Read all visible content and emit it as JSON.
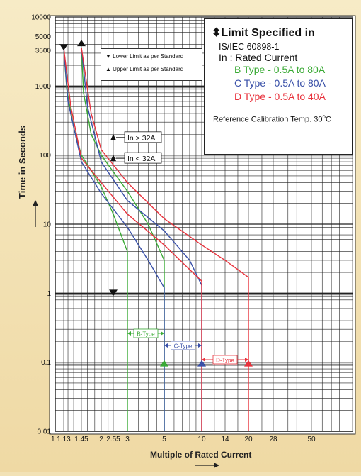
{
  "chart_data": {
    "type": "line",
    "xlabel": "Multiple of Rated Current",
    "ylabel": "Time in Seconds",
    "x_ticks": [
      "1",
      "1.13",
      "1.45",
      "2",
      "2.55",
      "3",
      "5",
      "10",
      "14",
      "20",
      "28",
      "50"
    ],
    "x_tick_values": [
      1,
      1.13,
      1.45,
      2,
      2.55,
      3,
      5,
      10,
      14,
      20,
      28,
      50
    ],
    "y_ticks": [
      "0.01",
      "0.1",
      "1",
      "10",
      "100",
      "1000",
      "3600",
      "5000",
      "10000"
    ],
    "y_tick_values": [
      0.01,
      0.1,
      1,
      10,
      100,
      1000,
      3600,
      5000,
      10000
    ],
    "ylim": [
      0.01,
      10000
    ],
    "y_scale": "log",
    "grid": true,
    "series": [
      {
        "name": "B Type - 0.5A to 80A",
        "color": "#3aaa35",
        "lower": [
          [
            1.13,
            3600
          ],
          [
            1.18,
            900
          ],
          [
            1.3,
            250
          ],
          [
            1.45,
            100
          ],
          [
            2,
            35
          ],
          [
            2.55,
            14
          ],
          [
            3,
            4
          ],
          [
            3,
            0.01
          ]
        ],
        "upper": [
          [
            1.45,
            3600
          ],
          [
            1.5,
            800
          ],
          [
            1.7,
            200
          ],
          [
            2,
            100
          ],
          [
            3,
            30
          ],
          [
            4,
            10
          ],
          [
            5,
            3
          ],
          [
            5,
            0.01
          ]
        ]
      },
      {
        "name": "C Type - 0.5A to 80A",
        "color": "#3950a8",
        "lower": [
          [
            1.13,
            3600
          ],
          [
            1.2,
            600
          ],
          [
            1.45,
            80
          ],
          [
            2,
            28
          ],
          [
            3,
            9
          ],
          [
            4,
            3
          ],
          [
            5,
            1.2
          ],
          [
            5,
            0.01
          ]
        ],
        "upper": [
          [
            1.45,
            3600
          ],
          [
            1.6,
            500
          ],
          [
            2,
            80
          ],
          [
            3,
            22
          ],
          [
            5,
            8
          ],
          [
            8,
            3
          ],
          [
            10,
            1.3
          ],
          [
            10,
            0.01
          ]
        ]
      },
      {
        "name": "D Type - 0.5A to 40A",
        "color": "#e8323c",
        "lower": [
          [
            1.13,
            3600
          ],
          [
            1.25,
            500
          ],
          [
            1.45,
            90
          ],
          [
            2,
            40
          ],
          [
            3,
            14
          ],
          [
            5,
            5
          ],
          [
            8,
            2.2
          ],
          [
            10,
            1.5
          ],
          [
            10,
            0.01
          ]
        ],
        "upper": [
          [
            1.45,
            3600
          ],
          [
            1.7,
            400
          ],
          [
            2,
            120
          ],
          [
            3,
            40
          ],
          [
            5,
            12
          ],
          [
            10,
            5
          ],
          [
            14,
            3
          ],
          [
            20,
            1.7
          ],
          [
            20,
            0.01
          ]
        ]
      }
    ],
    "annotations": [
      {
        "text": "In > 32A"
      },
      {
        "text": "In < 32A"
      },
      {
        "text": "B-Type",
        "from": 3,
        "to": 5,
        "color": "#3aaa35"
      },
      {
        "text": "C-Type",
        "from": 5,
        "to": 10,
        "color": "#3950a8"
      },
      {
        "text": "D-Type",
        "from": 10,
        "to": 20,
        "color": "#e8323c"
      }
    ],
    "limit_markers": {
      "lower": [
        [
          1.13,
          3600
        ],
        [
          2.55,
          1
        ]
      ],
      "upper": [
        [
          1.45,
          3600
        ],
        [
          5,
          0.1
        ],
        [
          10,
          0.1
        ],
        [
          20,
          0.1
        ]
      ]
    }
  },
  "legend": {
    "title": "Limit Specified in",
    "standard": "IS/IEC 60898-1",
    "rated": "In : Rated Current",
    "types": [
      {
        "label": "B Type - 0.5A to 80A",
        "color": "#3aaa35"
      },
      {
        "label": "C Type - 0.5A to 80A",
        "color": "#3950a8"
      },
      {
        "label": "D Type - 0.5A to 40A",
        "color": "#e8323c"
      }
    ],
    "reference_text": "Reference Calibration Temp. 30",
    "reference_unit": "o",
    "reference_suffix": "C"
  },
  "limits_legend": {
    "lower": "Lower Limit as per Standard",
    "upper": "Upper Limit as per Standard"
  }
}
